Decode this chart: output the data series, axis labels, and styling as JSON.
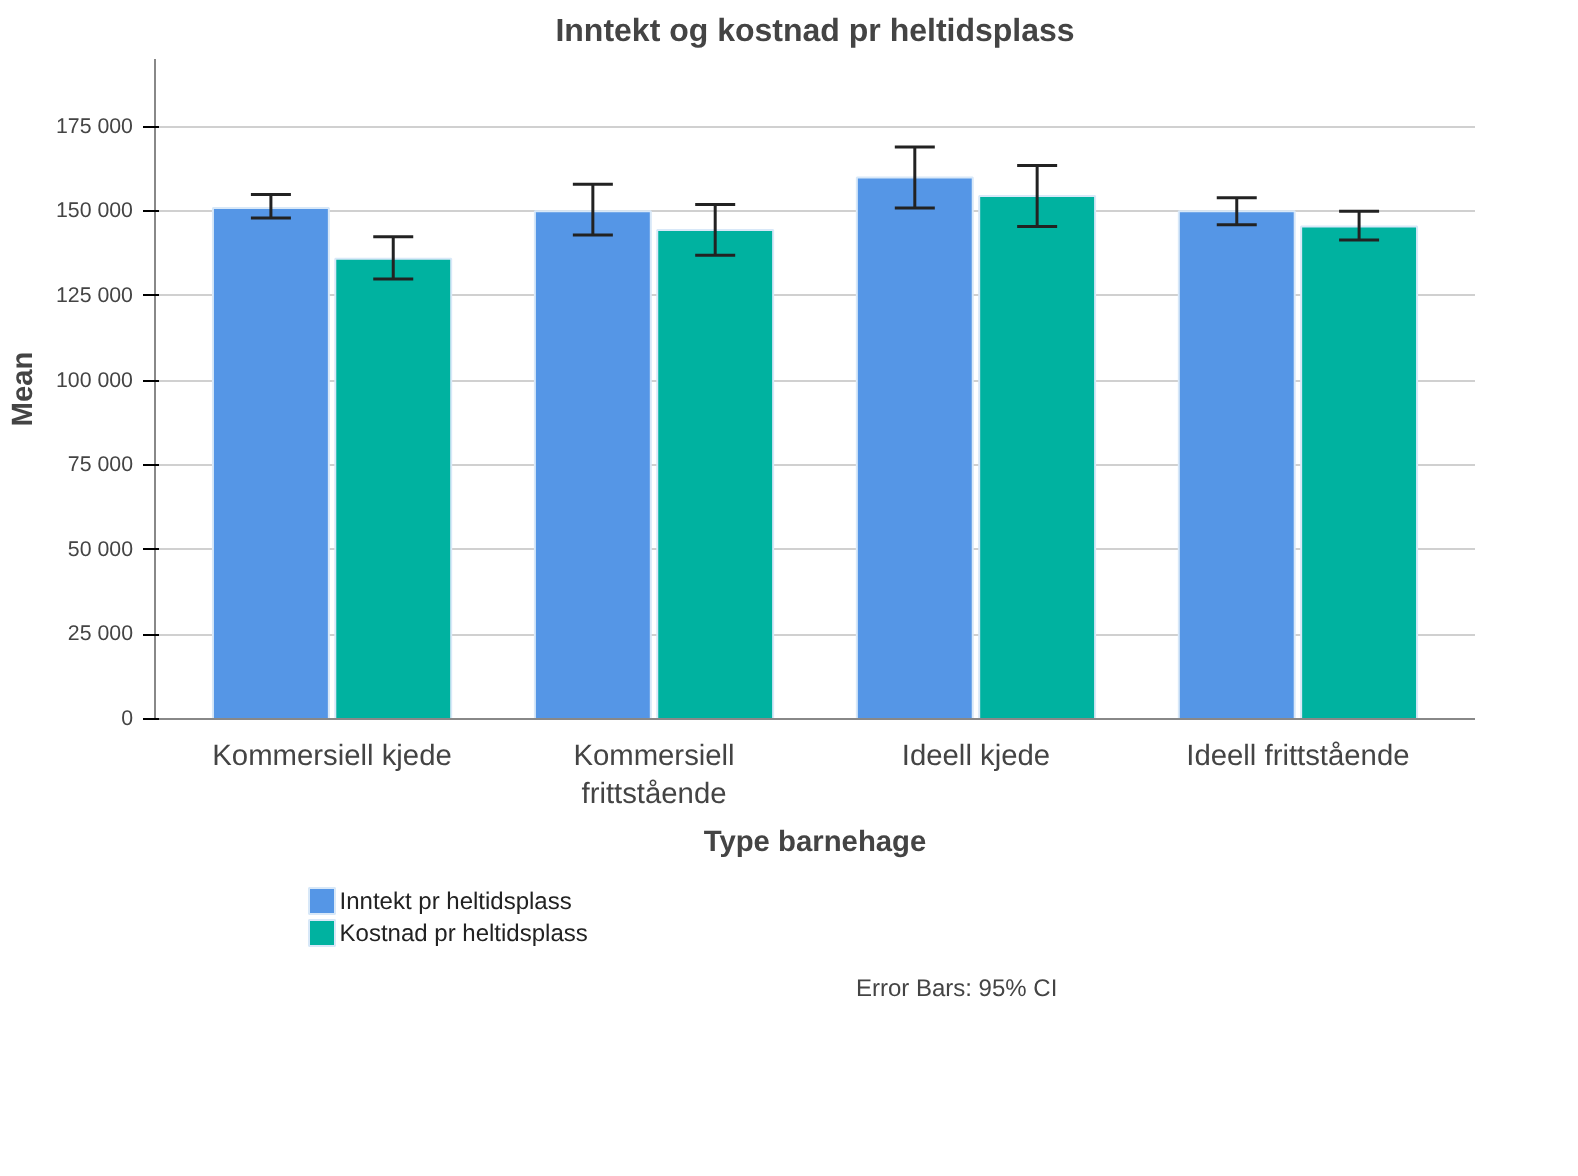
{
  "chart_data": {
    "type": "bar",
    "title": "Inntekt og kostnad pr heltidsplass",
    "xlabel": "Type barnehage",
    "ylabel": "Mean",
    "categories": [
      "Kommersiell kjede",
      "Kommersiell frittstående",
      "Ideell kjede",
      "Ideell frittstående"
    ],
    "series": [
      {
        "name": "Inntekt pr heltidsplass",
        "color": "#5596e6",
        "values": [
          151000,
          150000,
          160000,
          150000
        ],
        "errors": [
          [
            148000,
            155000
          ],
          [
            143000,
            158000
          ],
          [
            151000,
            169000
          ],
          [
            146000,
            154000
          ]
        ]
      },
      {
        "name": "Kostnad pr heltidsplass",
        "color": "#00b2a0",
        "values": [
          136000,
          144500,
          154500,
          145500
        ],
        "errors": [
          [
            130000,
            142500
          ],
          [
            137000,
            152000
          ],
          [
            145500,
            163500
          ],
          [
            141500,
            150000
          ]
        ]
      }
    ],
    "ylim": [
      0,
      195000
    ],
    "yticks": [
      {
        "value": 0,
        "label": "0"
      },
      {
        "value": 25000,
        "label": "25 000"
      },
      {
        "value": 50000,
        "label": "50 000"
      },
      {
        "value": 75000,
        "label": "75 000"
      },
      {
        "value": 100000,
        "label": "100 000"
      },
      {
        "value": 125000,
        "label": "125 000"
      },
      {
        "value": 150000,
        "label": "150 000"
      },
      {
        "value": 175000,
        "label": "175 000"
      }
    ],
    "grid": "y",
    "legend": "bottom left",
    "annotations": [
      "Error Bars: 95% CI"
    ]
  }
}
